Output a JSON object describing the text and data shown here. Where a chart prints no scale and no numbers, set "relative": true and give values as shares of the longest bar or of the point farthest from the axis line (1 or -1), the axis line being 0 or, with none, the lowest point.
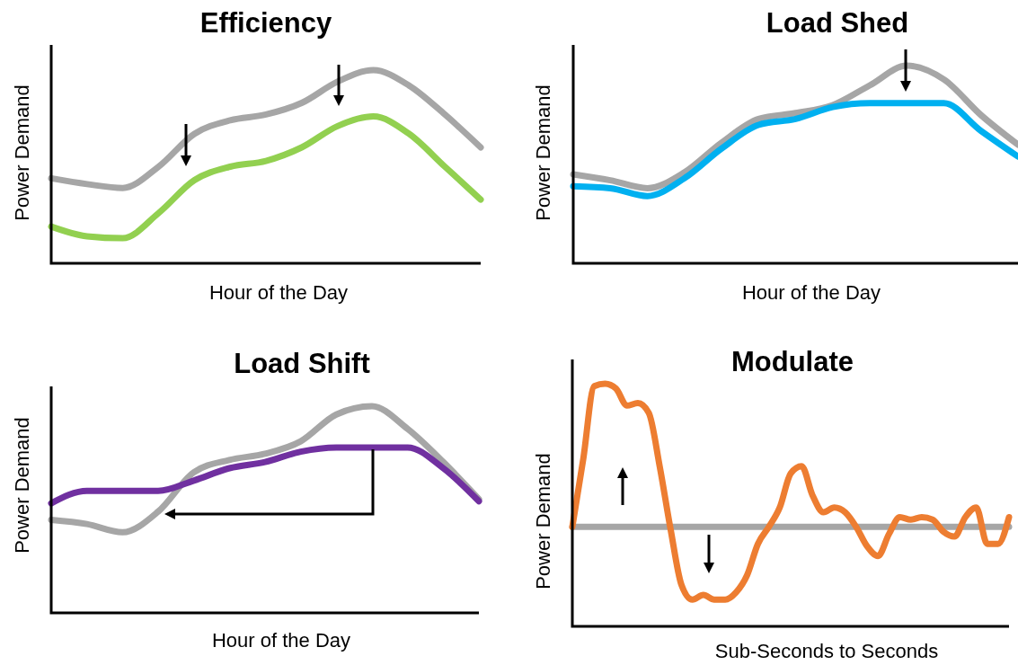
{
  "chart_data": [
    {
      "type": "line",
      "title": "Efficiency",
      "xlabel": "Hour of the Day",
      "ylabel": "Power Demand",
      "relative": true,
      "categories": [
        null,
        null,
        null,
        null,
        null,
        null,
        null,
        null,
        null,
        null,
        null,
        null,
        null
      ],
      "series": [
        {
          "color": "#a6a6a6",
          "values": [
            0.44,
            0.41,
            0.39,
            0.5,
            0.67,
            0.74,
            0.77,
            0.83,
            0.94,
            1,
            0.92,
            0.77,
            0.6
          ]
        },
        {
          "color": "#92d050",
          "values": [
            0.19,
            0.14,
            0.13,
            0.26,
            0.43,
            0.5,
            0.53,
            0.6,
            0.71,
            0.76,
            0.67,
            0.5,
            0.33
          ]
        }
      ]
    },
    {
      "type": "line",
      "title": "Load Shed",
      "xlabel": "Hour of the Day",
      "ylabel": "Power Demand",
      "relative": true,
      "categories": [
        null,
        null,
        null,
        null,
        null,
        null,
        null,
        null,
        null,
        null,
        null,
        null,
        null
      ],
      "series": [
        {
          "color": "#a6a6a6",
          "values": [
            0.45,
            0.42,
            0.38,
            0.46,
            0.61,
            0.73,
            0.76,
            0.8,
            0.9,
            1,
            0.93,
            0.75,
            0.6
          ]
        },
        {
          "color": "#00b0f0",
          "values": [
            0.39,
            0.38,
            0.34,
            0.43,
            0.58,
            0.7,
            0.73,
            0.79,
            0.81,
            0.81,
            0.81,
            0.67,
            0.54
          ]
        }
      ]
    },
    {
      "type": "line",
      "title": "Load Shift",
      "xlabel": "Hour of the Day",
      "ylabel": "Power Demand",
      "relative": true,
      "categories": [
        null,
        null,
        null,
        null,
        null,
        null,
        null,
        null,
        null,
        null,
        null,
        null,
        null
      ],
      "series": [
        {
          "color": "#a6a6a6",
          "values": [
            0.45,
            0.43,
            0.39,
            0.49,
            0.68,
            0.74,
            0.77,
            0.83,
            0.96,
            1,
            0.89,
            0.73,
            0.55
          ]
        },
        {
          "color": "#7030a0",
          "values": [
            0.53,
            0.59,
            0.59,
            0.59,
            0.64,
            0.7,
            0.73,
            0.78,
            0.8,
            0.8,
            0.8,
            0.7,
            0.54
          ]
        }
      ]
    },
    {
      "type": "line",
      "title": "Modulate",
      "xlabel": "Sub-Seconds to Seconds",
      "ylabel": "Power Demand",
      "relative": true,
      "categories": [
        null,
        null,
        null,
        null,
        null,
        null,
        null,
        null,
        null,
        null,
        null,
        null,
        null,
        null,
        null,
        null,
        null,
        null,
        null,
        null,
        null,
        null,
        null,
        null,
        null,
        null,
        null,
        null,
        null,
        null,
        null,
        null,
        null,
        null,
        null,
        null,
        null,
        null,
        null,
        null,
        null
      ],
      "series": [
        {
          "color": "#a6a6a6",
          "values": [
            0.41,
            0.41,
            0.41,
            0.41,
            0.41,
            0.41,
            0.41,
            0.41,
            0.41,
            0.41,
            0.41,
            0.41,
            0.41,
            0.41,
            0.41,
            0.41,
            0.41,
            0.41,
            0.41,
            0.41,
            0.41,
            0.41,
            0.41,
            0.41,
            0.41,
            0.41,
            0.41,
            0.41,
            0.41,
            0.41,
            0.41,
            0.41,
            0.41,
            0.41,
            0.41,
            0.41,
            0.41,
            0.41,
            0.41,
            0.41,
            0.41
          ]
        },
        {
          "color": "#ed7d31",
          "values": [
            0.41,
            0.69,
            0.99,
            1,
            0.98,
            0.91,
            0.92,
            0.88,
            0.66,
            0.4,
            0.17,
            0.11,
            0.13,
            0.11,
            0.11,
            0.14,
            0.21,
            0.34,
            0.41,
            0.49,
            0.63,
            0.66,
            0.54,
            0.47,
            0.49,
            0.47,
            0.41,
            0.33,
            0.29,
            0.38,
            0.45,
            0.44,
            0.45,
            0.44,
            0.39,
            0.37,
            0.45,
            0.49,
            0.34,
            0.34,
            0.45
          ]
        }
      ]
    }
  ]
}
